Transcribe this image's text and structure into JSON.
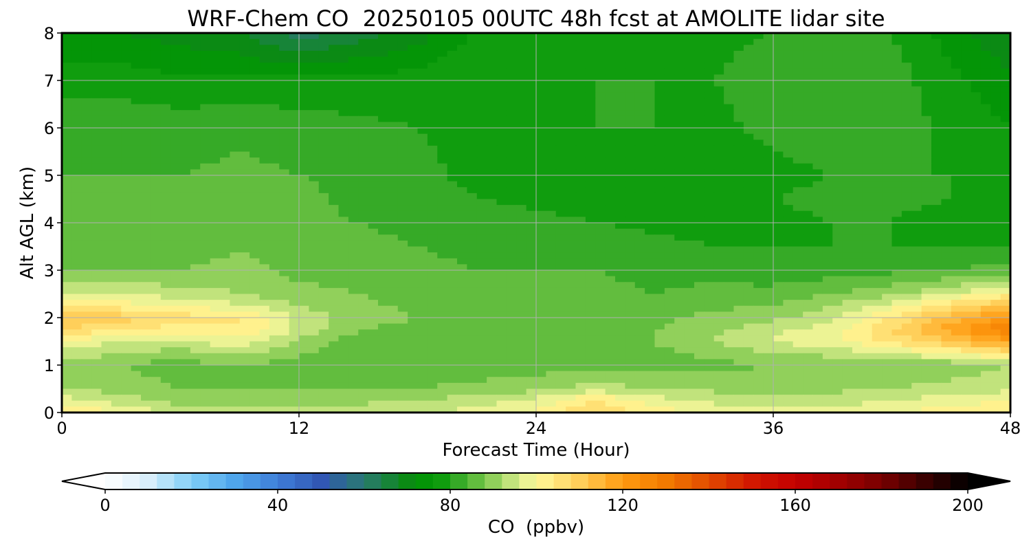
{
  "chart_data": {
    "type": "heatmap",
    "title": "WRF-Chem CO  20250105 00UTC 48h fcst at AMOLITE lidar site",
    "xlabel": "Forecast Time (Hour)",
    "ylabel": "Alt AGL (km)",
    "xlim": [
      0,
      48
    ],
    "ylim": [
      0,
      8
    ],
    "xticks": [
      "0",
      "12",
      "24",
      "36",
      "48"
    ],
    "yticks": [
      "0",
      "1",
      "2",
      "3",
      "4",
      "5",
      "6",
      "7",
      "8"
    ],
    "grid": true,
    "x": [
      0,
      3,
      6,
      9,
      12,
      15,
      18,
      21,
      24,
      27,
      30,
      33,
      36,
      39,
      42,
      45,
      48
    ],
    "y": [
      0,
      0.25,
      0.5,
      1,
      1.5,
      1.75,
      2,
      2.25,
      2.5,
      3,
      3.5,
      4,
      4.5,
      5,
      6,
      7,
      8
    ],
    "z": [
      [
        104,
        100,
        94,
        95,
        93,
        94,
        95,
        98,
        101,
        109,
        102,
        98,
        97,
        98,
        100,
        102,
        104
      ],
      [
        98,
        94,
        90,
        91,
        91,
        91,
        92,
        94,
        97,
        104,
        98,
        95,
        93,
        94,
        96,
        98,
        100
      ],
      [
        92,
        90,
        88,
        88,
        87,
        88,
        88,
        89,
        91,
        94,
        92,
        91,
        90,
        91,
        92,
        94,
        95
      ],
      [
        90,
        88,
        86,
        88,
        86,
        86,
        86,
        86,
        86,
        86,
        86,
        87,
        88,
        88,
        88,
        89,
        92
      ],
      [
        100,
        96,
        95,
        99,
        91,
        86,
        86,
        86,
        87,
        87,
        88,
        92,
        96,
        99,
        105,
        112,
        120
      ],
      [
        108,
        104,
        102,
        104,
        95,
        88,
        87,
        87,
        87,
        87,
        88,
        91,
        95,
        98,
        108,
        118,
        128
      ],
      [
        113,
        110,
        106,
        104,
        95,
        90,
        88,
        88,
        87,
        87,
        87,
        89,
        91,
        95,
        104,
        114,
        122
      ],
      [
        104,
        102,
        100,
        97,
        92,
        89,
        87,
        86,
        86,
        86,
        86,
        87,
        88,
        92,
        98,
        106,
        114
      ],
      [
        96,
        95,
        94,
        92,
        89,
        88,
        86,
        85,
        85,
        85,
        84,
        85,
        85,
        88,
        91,
        96,
        102
      ],
      [
        88,
        88,
        88,
        89,
        87,
        86,
        85,
        84,
        84,
        84,
        83,
        83,
        82,
        82,
        83,
        84,
        86
      ],
      [
        86,
        86,
        86,
        88,
        86,
        85,
        84,
        83,
        83,
        82,
        81,
        80,
        80,
        80,
        80,
        80,
        80
      ],
      [
        85,
        85,
        86,
        87,
        85,
        84,
        83,
        82,
        81,
        80,
        79,
        78,
        79,
        80,
        80,
        78,
        78
      ],
      [
        85,
        85,
        85,
        86,
        85,
        83,
        82,
        80,
        79,
        78,
        78,
        78,
        80,
        81,
        81,
        80,
        79
      ],
      [
        84,
        84,
        84,
        85,
        84,
        83,
        81,
        79,
        78,
        79,
        79,
        78,
        79,
        80,
        80,
        80,
        78
      ],
      [
        83,
        83,
        82,
        83,
        82,
        81,
        80,
        79,
        79,
        80,
        80,
        79,
        81,
        82,
        82,
        79,
        76
      ],
      [
        78,
        78,
        77,
        77,
        77,
        77,
        78,
        79,
        80,
        80,
        80,
        80,
        82,
        83,
        82,
        77,
        73
      ],
      [
        73,
        72,
        70,
        68,
        62,
        66,
        70,
        77,
        80,
        79,
        80,
        79,
        80,
        81,
        80,
        74,
        68
      ]
    ],
    "colorbar": {
      "label": "CO  (ppbv)",
      "min": 0,
      "max": 200,
      "ticks": [
        "0",
        "40",
        "80",
        "120",
        "160",
        "200"
      ],
      "extend": "both",
      "stops": [
        [
          0,
          "#ffffff"
        ],
        [
          10,
          "#d8eefb"
        ],
        [
          20,
          "#80cff7"
        ],
        [
          30,
          "#4fa6ec"
        ],
        [
          40,
          "#3f7ed8"
        ],
        [
          50,
          "#3157b4"
        ],
        [
          60,
          "#2a7a6f"
        ],
        [
          70,
          "#0b8a14"
        ],
        [
          76,
          "#009a00"
        ],
        [
          80,
          "#20a01c"
        ],
        [
          86,
          "#62bd3e"
        ],
        [
          92,
          "#a9da6a"
        ],
        [
          96,
          "#d8ec8e"
        ],
        [
          100,
          "#fff99a"
        ],
        [
          110,
          "#ffcf5a"
        ],
        [
          120,
          "#ff9a10"
        ],
        [
          130,
          "#f27a00"
        ],
        [
          140,
          "#e24a00"
        ],
        [
          150,
          "#d21800"
        ],
        [
          160,
          "#c40000"
        ],
        [
          170,
          "#a10000"
        ],
        [
          180,
          "#780000"
        ],
        [
          190,
          "#3a0000"
        ],
        [
          200,
          "#000000"
        ]
      ]
    }
  }
}
